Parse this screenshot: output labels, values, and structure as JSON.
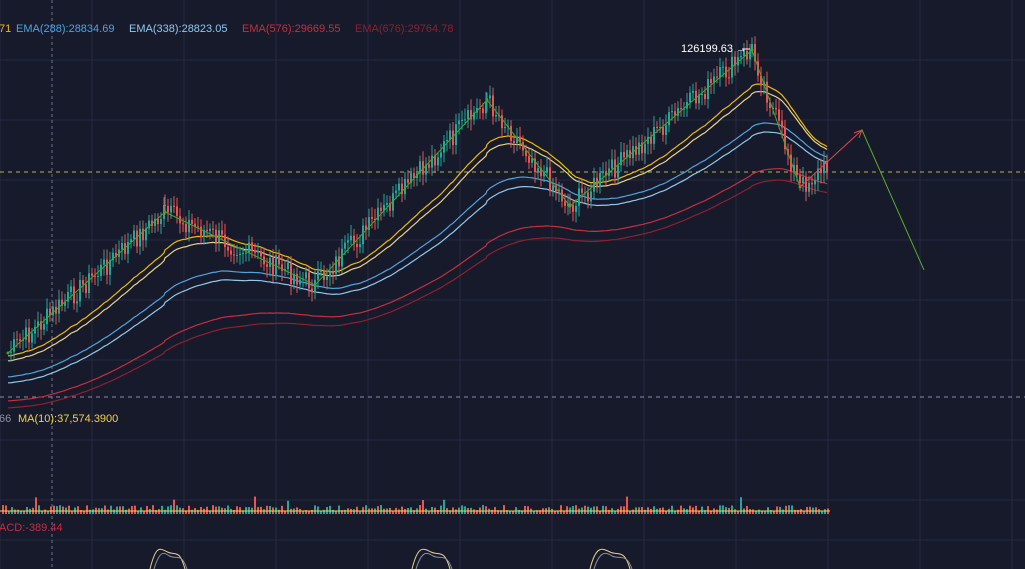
{
  "colors": {
    "background": "#161a2b",
    "grid": "#252a40",
    "up": "#26a69a",
    "down": "#ef5350",
    "ema288": "#4fa3e0",
    "ema338": "#8fc9ee",
    "ema576": "#c62f3e",
    "ema676": "#8e2030",
    "ema_short_a": "#f0b90b",
    "ema_short_b": "#e8d28a",
    "wave": "#3fa82c",
    "projection_up": "#e04848",
    "projection_down": "#5caa2a",
    "dashed": "#c7c45a",
    "ma10": "#f0d24a",
    "macd_line": "#e8d28a"
  },
  "indicators": {
    "ema_prefix": "71",
    "ema288": "EMA(288):28834.69",
    "ema338": "EMA(338):28823.05",
    "ema576": "EMA(576):29669.55",
    "ema676": "EMA(676):29764.78",
    "volume_prefix": "66",
    "ma10": "MA(10):37,574.3900",
    "macd": "ACD:-389.44"
  },
  "annotations": {
    "peak_label": "126199.63 →"
  },
  "chart_data": {
    "type": "line",
    "title": "",
    "series_note": "candlestick price series with EMA overlays, volume and MACD sub-panels",
    "y_reference": {
      "peak": 126199.63
    },
    "wave_points": [
      {
        "x": 0,
        "y": 0.0
      },
      {
        "x": 1,
        "y": 0.55
      },
      {
        "x": 2,
        "y": 0.31
      },
      {
        "x": 3,
        "y": 0.82
      },
      {
        "x": 4,
        "y": 0.58
      },
      {
        "x": 5,
        "y": 1.0
      },
      {
        "x": 6,
        "y": 0.8
      },
      {
        "x": 7,
        "y": 0.63
      }
    ],
    "series": [
      {
        "name": "EMA(288)"
      },
      {
        "name": "EMA(338)"
      },
      {
        "name": "EMA(576)"
      },
      {
        "name": "EMA(676)"
      }
    ]
  }
}
